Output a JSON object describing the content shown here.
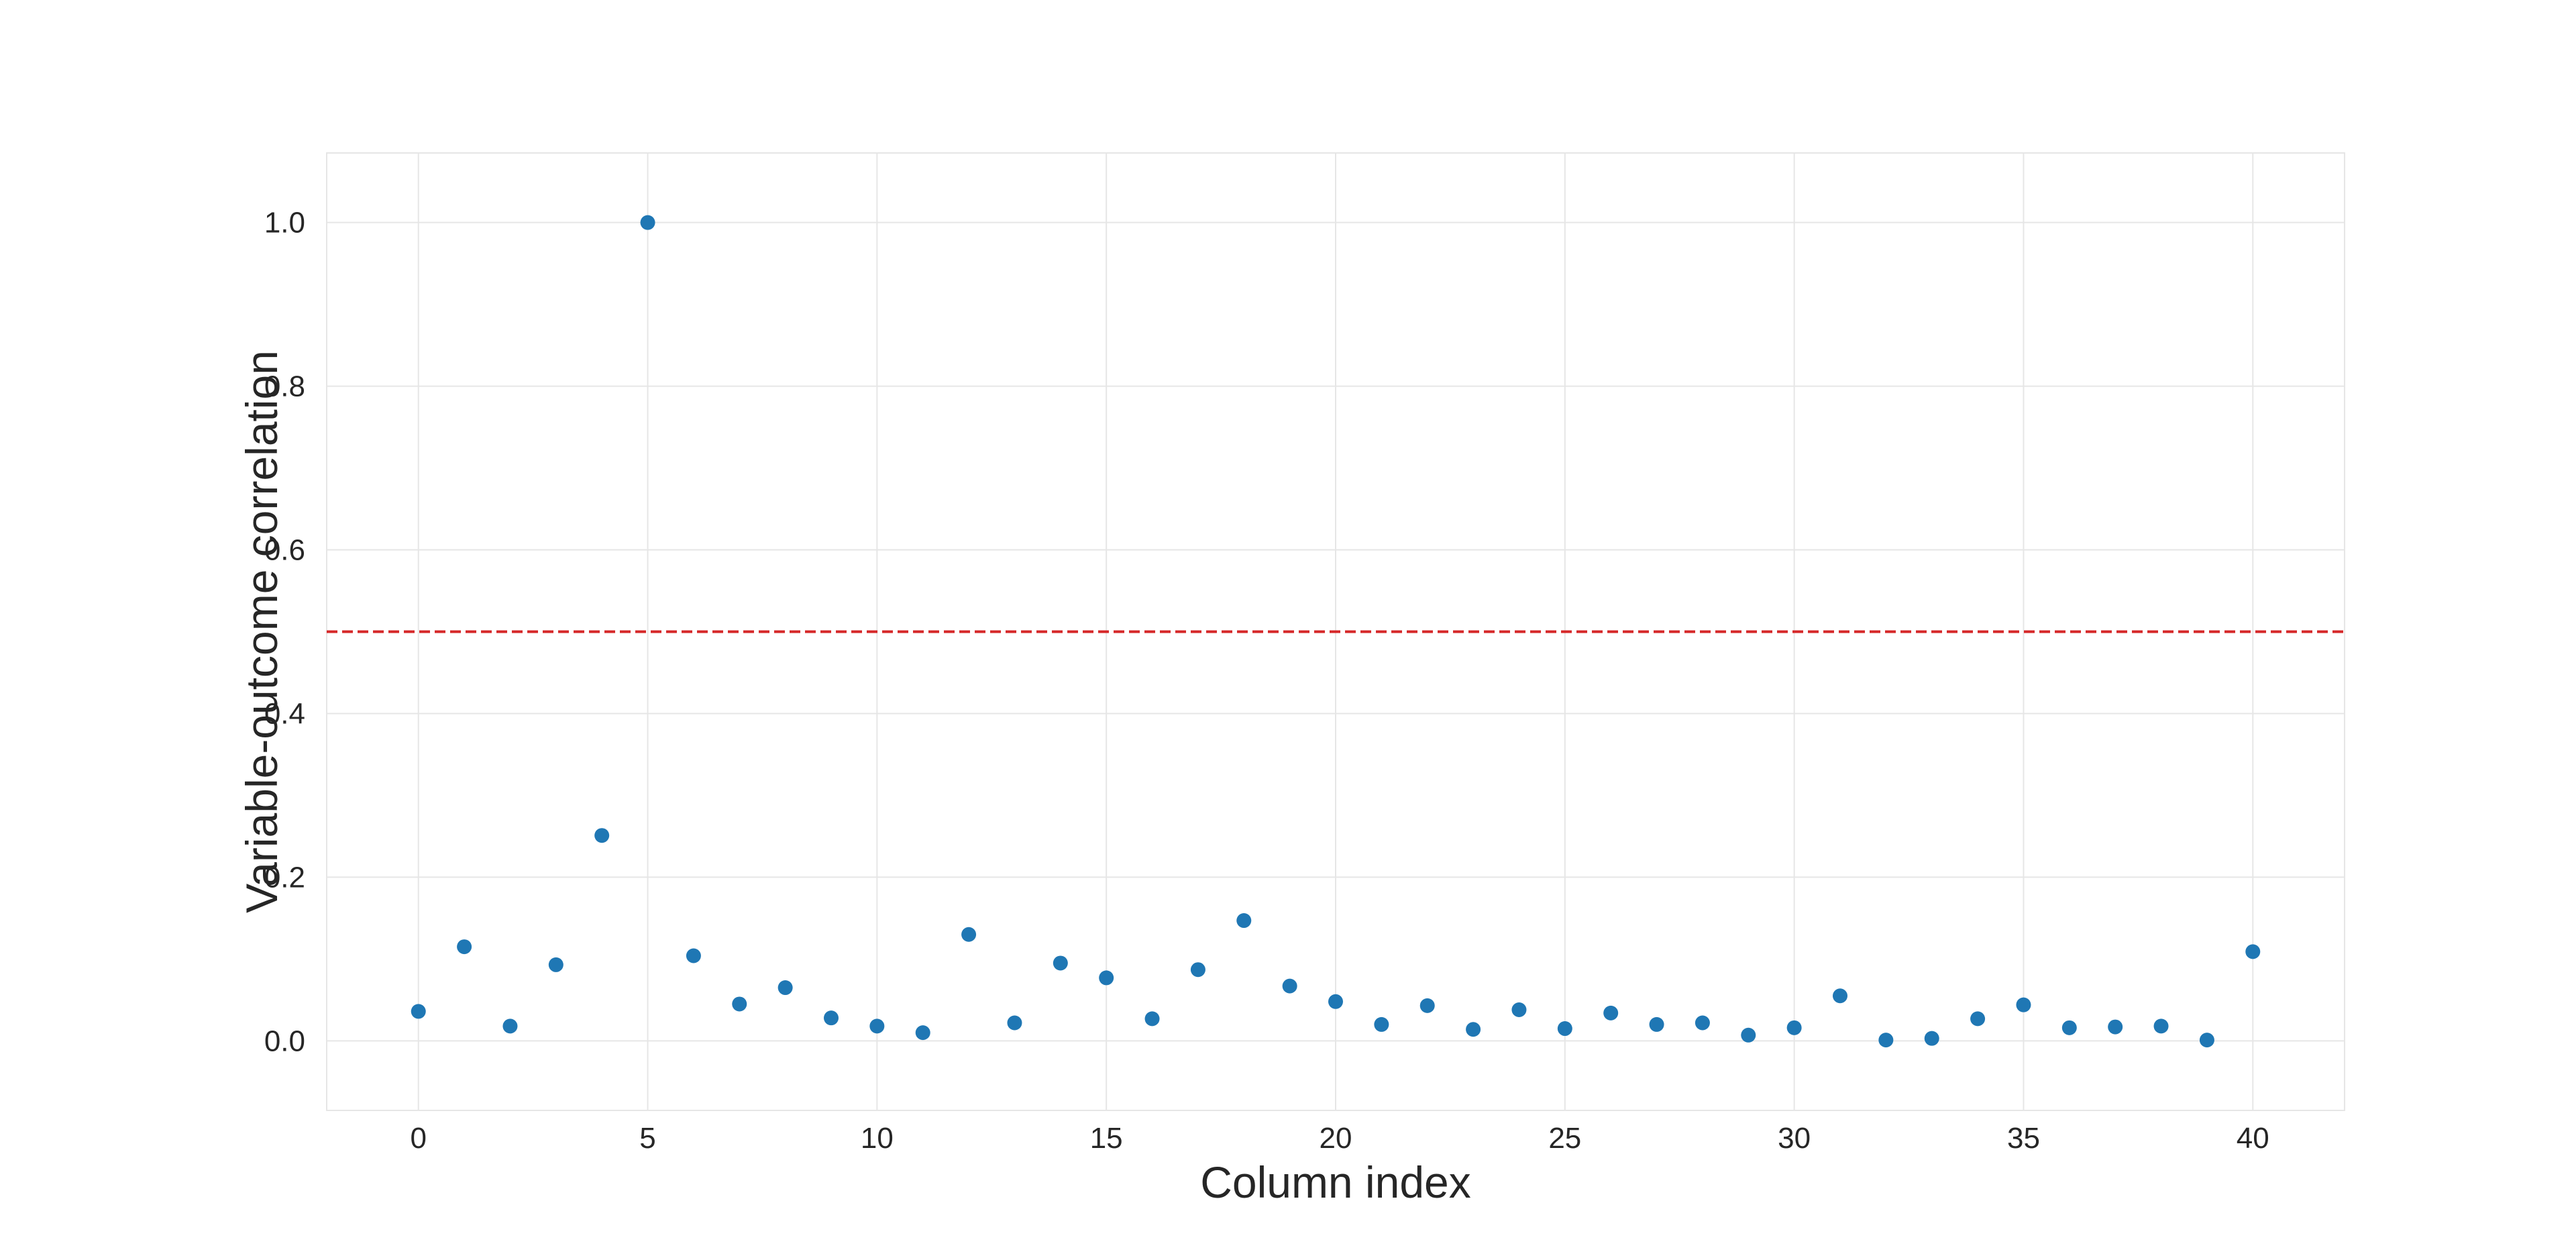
{
  "chart_data": {
    "type": "scatter",
    "title": "",
    "xlabel": "Column index",
    "ylabel": "Variable-outcome correlation",
    "xlim": [
      -2,
      42
    ],
    "ylim": [
      -0.085,
      1.085
    ],
    "xticks": [
      0,
      5,
      10,
      15,
      20,
      25,
      30,
      35,
      40
    ],
    "xtick_labels": [
      "0",
      "5",
      "10",
      "15",
      "20",
      "25",
      "30",
      "35",
      "40"
    ],
    "yticks": [
      0.0,
      0.2,
      0.4,
      0.6,
      0.8,
      1.0
    ],
    "ytick_labels": [
      "0.0",
      "0.2",
      "0.4",
      "0.6",
      "0.8",
      "1.0"
    ],
    "grid": true,
    "series": [
      {
        "color": "#1f77b4",
        "x": [
          0,
          1,
          2,
          3,
          4,
          5,
          6,
          7,
          8,
          9,
          10,
          11,
          12,
          13,
          14,
          15,
          16,
          17,
          18,
          19,
          20,
          21,
          22,
          23,
          24,
          25,
          26,
          27,
          28,
          29,
          30,
          31,
          32,
          33,
          34,
          35,
          36,
          37,
          38,
          39,
          40
        ],
        "values": [
          0.036,
          0.115,
          0.018,
          0.093,
          0.251,
          1.0,
          0.104,
          0.045,
          0.065,
          0.028,
          0.018,
          0.01,
          0.13,
          0.022,
          0.095,
          0.077,
          0.027,
          0.087,
          0.147,
          0.067,
          0.048,
          0.02,
          0.043,
          0.014,
          0.038,
          0.015,
          0.034,
          0.02,
          0.022,
          0.007,
          0.016,
          0.055,
          0.001,
          0.003,
          0.027,
          0.044,
          0.016,
          0.017,
          0.018,
          0.001,
          0.109
        ]
      }
    ],
    "reference_lines": [
      {
        "orientation": "horizontal",
        "y": 0.5,
        "color": "#d62728",
        "style": "dashed"
      }
    ]
  }
}
